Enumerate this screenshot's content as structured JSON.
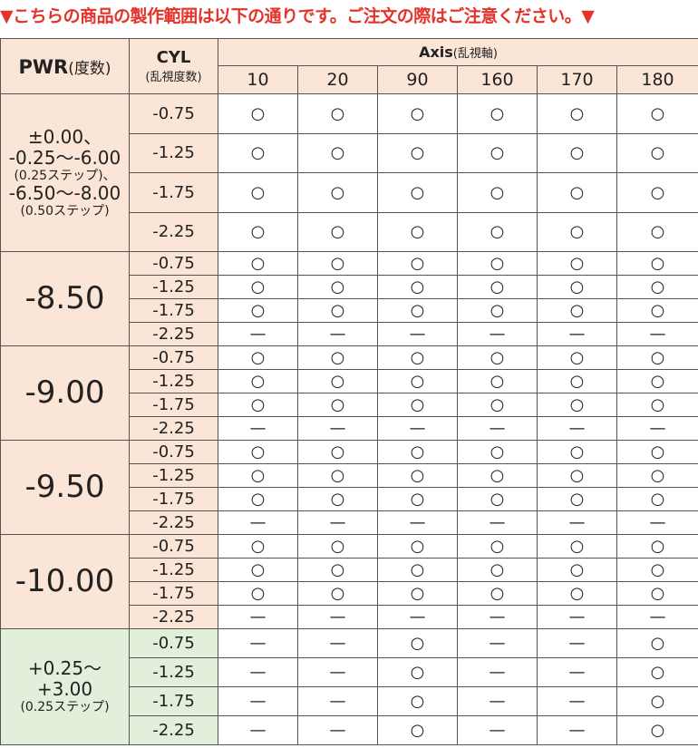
{
  "notice": "▼こちらの商品の製作範囲は以下の通りです。ご注文の際はご注意ください。▼",
  "table": {
    "header": {
      "pwr": "PWR",
      "pwr_note": "(度数)",
      "cyl": "CYL",
      "cyl_note": "(乱視度数)",
      "axis": "Axis",
      "axis_note": "(乱視軸)",
      "axis_values": [
        10,
        20,
        90,
        160,
        170,
        180
      ]
    },
    "groups": [
      {
        "pwr": [
          "±0.00、",
          "-0.25～-6.00",
          "(0.25ステップ)、",
          "-6.50～-8.00",
          "(0.50ステップ)"
        ],
        "rows": [
          {
            "cyl": "-0.75",
            "cells": [
              "○",
              "○",
              "○",
              "○",
              "○",
              "○"
            ]
          },
          {
            "cyl": "-1.25",
            "cells": [
              "○",
              "○",
              "○",
              "○",
              "○",
              "○"
            ]
          },
          {
            "cyl": "-1.75",
            "cells": [
              "○",
              "○",
              "○",
              "○",
              "○",
              "○"
            ]
          },
          {
            "cyl": "-2.25",
            "cells": [
              "○",
              "○",
              "○",
              "○",
              "○",
              "○"
            ]
          }
        ]
      },
      {
        "pwr": [
          "-8.50"
        ],
        "rows": [
          {
            "cyl": "-0.75",
            "cells": [
              "○",
              "○",
              "○",
              "○",
              "○",
              "○"
            ]
          },
          {
            "cyl": "-1.25",
            "cells": [
              "○",
              "○",
              "○",
              "○",
              "○",
              "○"
            ]
          },
          {
            "cyl": "-1.75",
            "cells": [
              "○",
              "○",
              "○",
              "○",
              "○",
              "○"
            ]
          },
          {
            "cyl": "-2.25",
            "cells": [
              "—",
              "—",
              "—",
              "—",
              "—",
              "—"
            ]
          }
        ]
      },
      {
        "pwr": [
          "-9.00"
        ],
        "rows": [
          {
            "cyl": "-0.75",
            "cells": [
              "○",
              "○",
              "○",
              "○",
              "○",
              "○"
            ]
          },
          {
            "cyl": "-1.25",
            "cells": [
              "○",
              "○",
              "○",
              "○",
              "○",
              "○"
            ]
          },
          {
            "cyl": "-1.75",
            "cells": [
              "○",
              "○",
              "○",
              "○",
              "○",
              "○"
            ]
          },
          {
            "cyl": "-2.25",
            "cells": [
              "—",
              "—",
              "—",
              "—",
              "—",
              "—"
            ]
          }
        ]
      },
      {
        "pwr": [
          "-9.50"
        ],
        "rows": [
          {
            "cyl": "-0.75",
            "cells": [
              "○",
              "○",
              "○",
              "○",
              "○",
              "○"
            ]
          },
          {
            "cyl": "-1.25",
            "cells": [
              "○",
              "○",
              "○",
              "○",
              "○",
              "○"
            ]
          },
          {
            "cyl": "-1.75",
            "cells": [
              "○",
              "○",
              "○",
              "○",
              "○",
              "○"
            ]
          },
          {
            "cyl": "-2.25",
            "cells": [
              "—",
              "—",
              "—",
              "—",
              "—",
              "—"
            ]
          }
        ]
      },
      {
        "pwr": [
          "-10.00"
        ],
        "rows": [
          {
            "cyl": "-0.75",
            "cells": [
              "○",
              "○",
              "○",
              "○",
              "○",
              "○"
            ]
          },
          {
            "cyl": "-1.25",
            "cells": [
              "○",
              "○",
              "○",
              "○",
              "○",
              "○"
            ]
          },
          {
            "cyl": "-1.75",
            "cells": [
              "○",
              "○",
              "○",
              "○",
              "○",
              "○"
            ]
          },
          {
            "cyl": "-2.25",
            "cells": [
              "—",
              "—",
              "—",
              "—",
              "—",
              "—"
            ]
          }
        ]
      },
      {
        "pwr": [
          "+0.25～",
          "+3.00",
          "(0.25ステップ)"
        ],
        "rows": [
          {
            "cyl": "-0.75",
            "cells": [
              "—",
              "—",
              "○",
              "—",
              "—",
              "○"
            ]
          },
          {
            "cyl": "-1.25",
            "cells": [
              "—",
              "—",
              "○",
              "—",
              "—",
              "○"
            ]
          },
          {
            "cyl": "-1.75",
            "cells": [
              "—",
              "—",
              "○",
              "—",
              "—",
              "○"
            ]
          },
          {
            "cyl": "-2.25",
            "cells": [
              "—",
              "—",
              "○",
              "—",
              "—",
              "○"
            ]
          }
        ]
      }
    ]
  }
}
